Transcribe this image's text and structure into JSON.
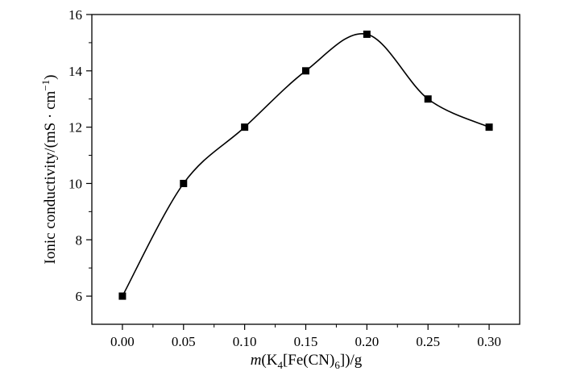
{
  "chart_data": {
    "type": "line",
    "title": "",
    "xlabel": {
      "m": "m",
      "open": "(K",
      "sub1": "4",
      "mid": "[Fe(CN)",
      "sub2": "6",
      "close": "])/g"
    },
    "ylabel": {
      "main": "Ionic conductivity/(mS · cm",
      "sup": "−1",
      "close": ")"
    },
    "xlim": [
      -0.025,
      0.325
    ],
    "ylim": [
      5,
      16
    ],
    "xticks": [
      0.0,
      0.05,
      0.1,
      0.15,
      0.2,
      0.25,
      0.3
    ],
    "xtick_labels": [
      "0.00",
      "0.05",
      "0.10",
      "0.15",
      "0.20",
      "0.25",
      "0.30"
    ],
    "yticks": [
      6,
      8,
      10,
      12,
      14,
      16
    ],
    "ytick_labels": [
      "6",
      "8",
      "10",
      "12",
      "14",
      "16"
    ],
    "grid": false,
    "legend": "none",
    "marker": "square",
    "smooth": true,
    "series": [
      {
        "x": [
          0.0,
          0.05,
          0.1,
          0.15,
          0.2,
          0.25,
          0.3
        ],
        "y": [
          6.0,
          10.0,
          12.0,
          14.0,
          15.3,
          13.0,
          12.0
        ]
      }
    ],
    "colors": {
      "line": "#000000",
      "marker": "#000000",
      "axis": "#000000"
    }
  }
}
